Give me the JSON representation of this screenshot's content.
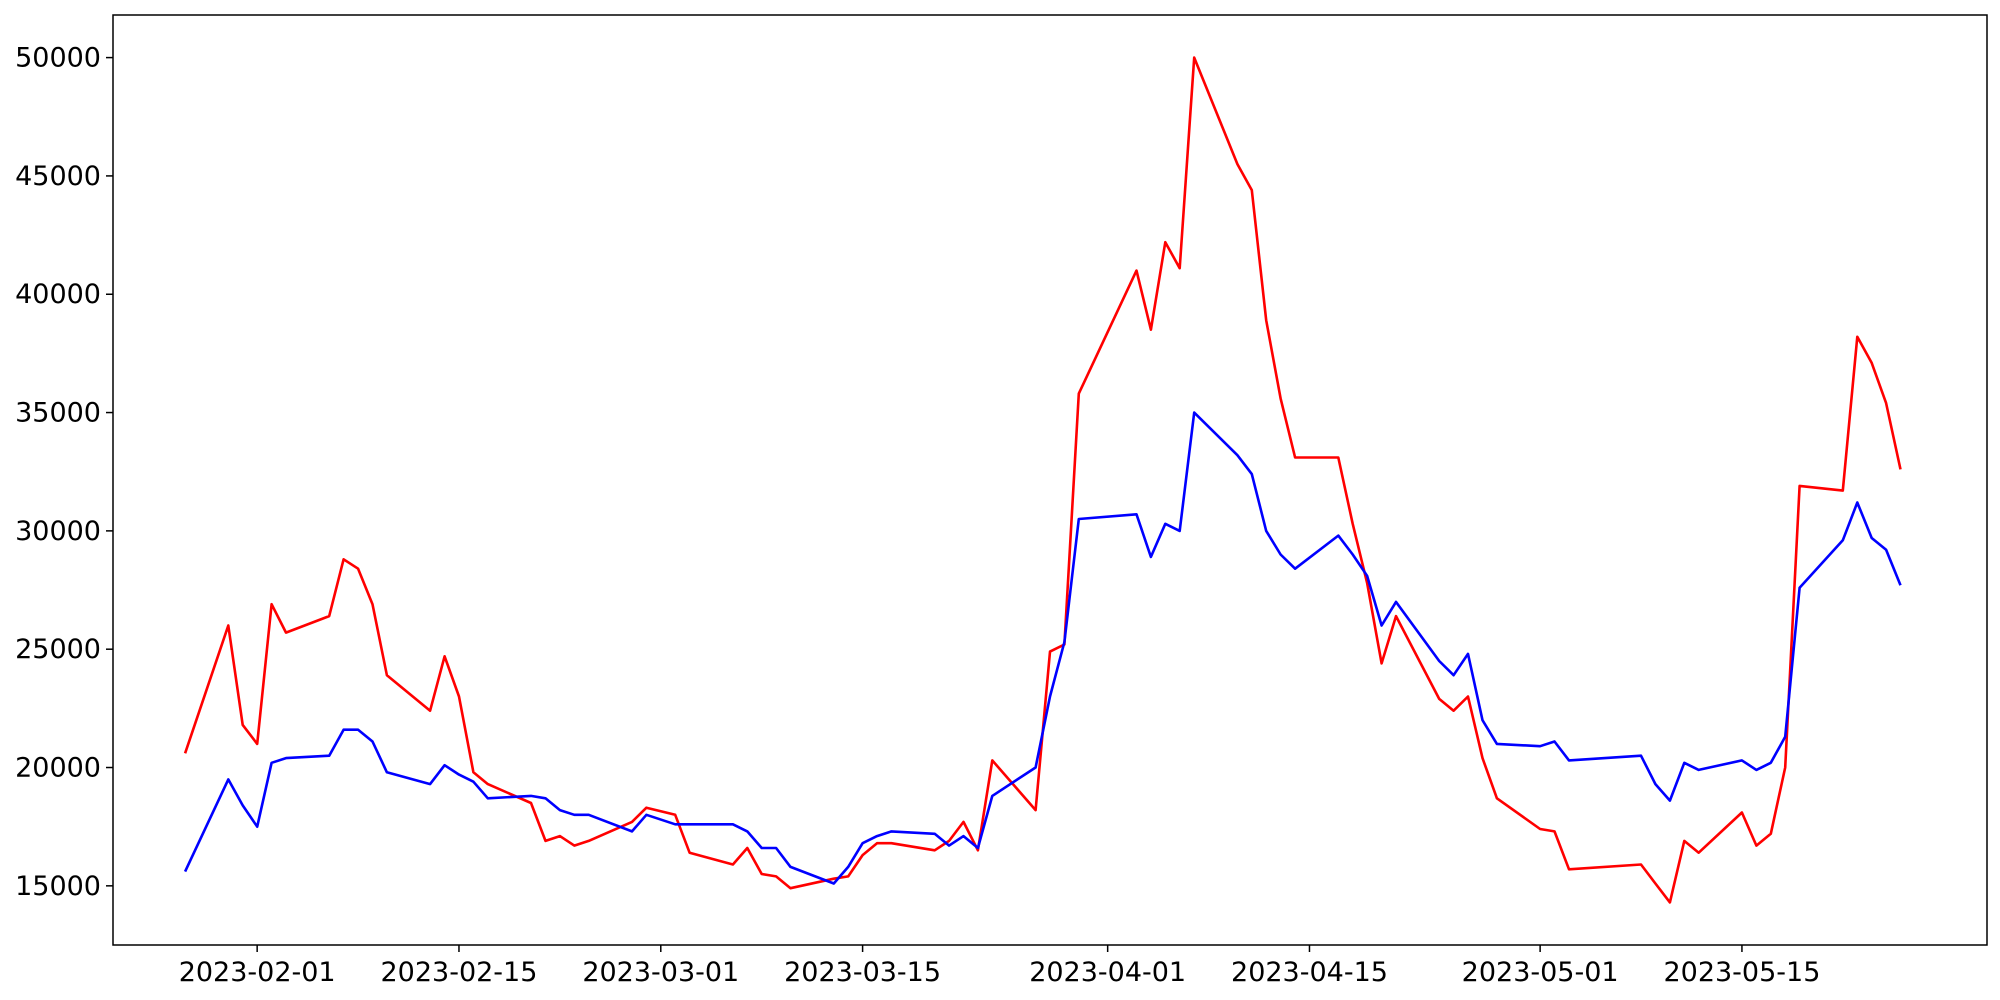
{
  "chart_data": {
    "type": "line",
    "title": "",
    "xlabel": "",
    "ylabel": "",
    "xlim": [
      "2023-01-22",
      "2023-06-01"
    ],
    "ylim": [
      12500,
      51800
    ],
    "grid": false,
    "legend": "none",
    "x_ticks": [
      {
        "date": "2023-02-01",
        "label": "2023-02-01"
      },
      {
        "date": "2023-02-15",
        "label": "2023-02-15"
      },
      {
        "date": "2023-03-01",
        "label": "2023-03-01"
      },
      {
        "date": "2023-03-15",
        "label": "2023-03-15"
      },
      {
        "date": "2023-04-01",
        "label": "2023-04-01"
      },
      {
        "date": "2023-04-15",
        "label": "2023-04-15"
      },
      {
        "date": "2023-05-01",
        "label": "2023-05-01"
      },
      {
        "date": "2023-05-15",
        "label": "2023-05-15"
      }
    ],
    "y_ticks": [
      {
        "value": 15000,
        "label": "15000"
      },
      {
        "value": 20000,
        "label": "20000"
      },
      {
        "value": 25000,
        "label": "25000"
      },
      {
        "value": 30000,
        "label": "30000"
      },
      {
        "value": 35000,
        "label": "35000"
      },
      {
        "value": 40000,
        "label": "40000"
      },
      {
        "value": 45000,
        "label": "45000"
      },
      {
        "value": 50000,
        "label": "50000"
      }
    ],
    "x": [
      "2023-01-27",
      "2023-01-30",
      "2023-01-31",
      "2023-02-01",
      "2023-02-02",
      "2023-02-03",
      "2023-02-06",
      "2023-02-07",
      "2023-02-08",
      "2023-02-09",
      "2023-02-10",
      "2023-02-13",
      "2023-02-14",
      "2023-02-15",
      "2023-02-16",
      "2023-02-17",
      "2023-02-20",
      "2023-02-21",
      "2023-02-22",
      "2023-02-23",
      "2023-02-24",
      "2023-02-27",
      "2023-02-28",
      "2023-03-02",
      "2023-03-03",
      "2023-03-06",
      "2023-03-07",
      "2023-03-08",
      "2023-03-09",
      "2023-03-10",
      "2023-03-13",
      "2023-03-14",
      "2023-03-15",
      "2023-03-16",
      "2023-03-17",
      "2023-03-20",
      "2023-03-21",
      "2023-03-22",
      "2023-03-23",
      "2023-03-24",
      "2023-03-27",
      "2023-03-28",
      "2023-03-29",
      "2023-03-30",
      "2023-04-03",
      "2023-04-04",
      "2023-04-05",
      "2023-04-06",
      "2023-04-07",
      "2023-04-10",
      "2023-04-11",
      "2023-04-12",
      "2023-04-13",
      "2023-04-14",
      "2023-04-17",
      "2023-04-18",
      "2023-04-19",
      "2023-04-20",
      "2023-04-21",
      "2023-04-24",
      "2023-04-25",
      "2023-04-26",
      "2023-04-27",
      "2023-04-28",
      "2023-05-01",
      "2023-05-02",
      "2023-05-03",
      "2023-05-08",
      "2023-05-09",
      "2023-05-10",
      "2023-05-11",
      "2023-05-12",
      "2023-05-15",
      "2023-05-16",
      "2023-05-17",
      "2023-05-18",
      "2023-05-19",
      "2023-05-22",
      "2023-05-23",
      "2023-05-24",
      "2023-05-25",
      "2023-05-26"
    ],
    "series": [
      {
        "color": "#ff0000",
        "values": [
          20600,
          26000,
          21800,
          21000,
          26900,
          25700,
          26400,
          28800,
          28400,
          26900,
          23900,
          22400,
          24700,
          23000,
          19800,
          19300,
          18500,
          16900,
          17100,
          16700,
          16900,
          17700,
          18300,
          18000,
          16400,
          15900,
          16600,
          15500,
          15400,
          14900,
          15300,
          15400,
          16300,
          16800,
          16800,
          16500,
          16900,
          17700,
          16500,
          20300,
          18200,
          24900,
          25200,
          35800,
          41000,
          38500,
          42200,
          41100,
          50000,
          45500,
          44400,
          38900,
          35600,
          33100,
          33100,
          30300,
          27800,
          24400,
          26400,
          22900,
          22400,
          23000,
          20400,
          18700,
          17400,
          17300,
          15700,
          15900,
          15100,
          14300,
          16900,
          16400,
          18100,
          16700,
          17200,
          20000,
          31900,
          31700,
          38200,
          37100,
          35400,
          32600
        ]
      },
      {
        "color": "#0000ff",
        "values": [
          15600,
          19500,
          18400,
          17500,
          20200,
          20400,
          20500,
          21600,
          21600,
          21100,
          19800,
          19300,
          20100,
          19700,
          19400,
          18700,
          18800,
          18700,
          18200,
          18000,
          18000,
          17300,
          18000,
          17600,
          17600,
          17600,
          17300,
          16600,
          16600,
          15800,
          15100,
          15800,
          16800,
          17100,
          17300,
          17200,
          16700,
          17100,
          16600,
          18800,
          20000,
          23000,
          25300,
          30500,
          30700,
          28900,
          30300,
          30000,
          35000,
          33200,
          32400,
          30000,
          29000,
          28400,
          29800,
          29000,
          28100,
          26000,
          27000,
          24500,
          23900,
          24800,
          22000,
          21000,
          20900,
          21100,
          20300,
          20500,
          19300,
          18600,
          20200,
          19900,
          20300,
          19900,
          20200,
          21300,
          27600,
          29600,
          31200,
          29700,
          29200,
          27700
        ]
      }
    ]
  }
}
